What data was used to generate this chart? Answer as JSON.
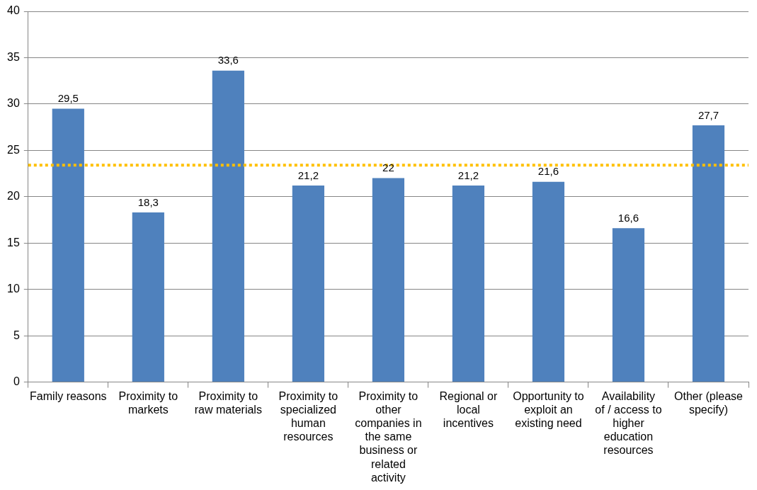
{
  "chart_data": {
    "type": "bar",
    "categories": [
      "Family reasons",
      "Proximity to markets",
      "Proximity to raw materials",
      "Proximity to specialized human resources",
      "Proximity to other companies in the same business or related activity",
      "Regional or local incentives",
      "Opportunity to exploit an existing need",
      "Availability of / access to higher education resources",
      "Other (please specify)"
    ],
    "values": [
      29.5,
      18.3,
      33.6,
      21.2,
      22,
      21.2,
      21.6,
      16.6,
      27.7
    ],
    "value_labels": [
      "29,5",
      "18,3",
      "33,6",
      "21,2",
      "22",
      "21,2",
      "21,6",
      "16,6",
      "27,7"
    ],
    "color": "#4f81bd",
    "ylim": [
      0,
      40
    ],
    "yticks": [
      0,
      5,
      10,
      15,
      20,
      25,
      30,
      35,
      40
    ],
    "grid": "y",
    "legend": false,
    "ref_lines": [
      {
        "axis": "y",
        "value": 23.4,
        "color": "#ffc000",
        "line_style": "dotted"
      }
    ]
  }
}
